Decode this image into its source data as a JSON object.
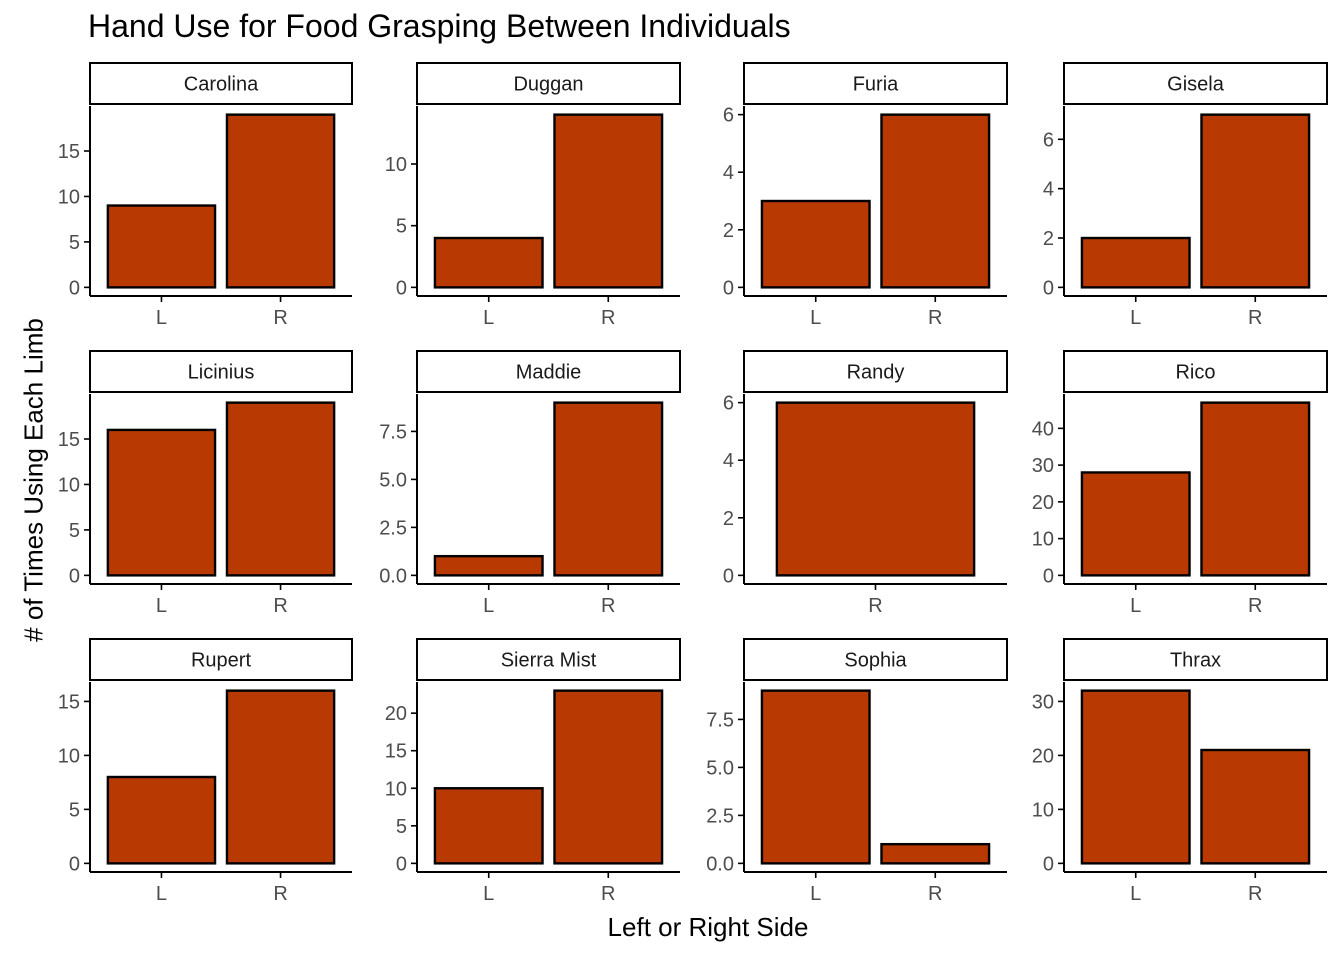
{
  "chart_data": {
    "type": "bar",
    "title": "Hand Use for Food Grasping Between Individuals",
    "xlabel": "Left or Right Side",
    "ylabel": "# of Times Using Each Limb",
    "colors": {
      "bar_fill": "#b83a02",
      "bar_stroke": "#000000",
      "axis": "#000000",
      "tick_label": "#4d4d4d"
    },
    "grid": false,
    "facets": [
      {
        "name": "Carolina",
        "categories": [
          "L",
          "R"
        ],
        "values": [
          9,
          19
        ],
        "ylim": [
          0,
          19.95
        ],
        "yticks": [
          0,
          5,
          10,
          15
        ],
        "ytick_labels": [
          "0",
          "5",
          "10",
          "15"
        ]
      },
      {
        "name": "Duggan",
        "categories": [
          "L",
          "R"
        ],
        "values": [
          4,
          14
        ],
        "ylim": [
          0,
          14.7
        ],
        "yticks": [
          0,
          5,
          10
        ],
        "ytick_labels": [
          "0",
          "5",
          "10"
        ]
      },
      {
        "name": "Furia",
        "categories": [
          "L",
          "R"
        ],
        "values": [
          3,
          6
        ],
        "ylim": [
          0,
          6.3
        ],
        "yticks": [
          0,
          2,
          4,
          6
        ],
        "ytick_labels": [
          "0",
          "2",
          "4",
          "6"
        ]
      },
      {
        "name": "Gisela",
        "categories": [
          "L",
          "R"
        ],
        "values": [
          2,
          7
        ],
        "ylim": [
          0,
          7.35
        ],
        "yticks": [
          0,
          2,
          4,
          6
        ],
        "ytick_labels": [
          "0",
          "2",
          "4",
          "6"
        ]
      },
      {
        "name": "Licinius",
        "categories": [
          "L",
          "R"
        ],
        "values": [
          16,
          19
        ],
        "ylim": [
          0,
          19.95
        ],
        "yticks": [
          0,
          5,
          10,
          15
        ],
        "ytick_labels": [
          "0",
          "5",
          "10",
          "15"
        ]
      },
      {
        "name": "Maddie",
        "categories": [
          "L",
          "R"
        ],
        "values": [
          1,
          9
        ],
        "ylim": [
          0,
          9.45
        ],
        "yticks": [
          0,
          2.5,
          5,
          7.5
        ],
        "ytick_labels": [
          "0.0",
          "2.5",
          "5.0",
          "7.5"
        ]
      },
      {
        "name": "Randy",
        "categories": [
          "R"
        ],
        "values": [
          6
        ],
        "ylim": [
          0,
          6.3
        ],
        "yticks": [
          0,
          2,
          4,
          6
        ],
        "ytick_labels": [
          "0",
          "2",
          "4",
          "6"
        ]
      },
      {
        "name": "Rico",
        "categories": [
          "L",
          "R"
        ],
        "values": [
          28,
          47
        ],
        "ylim": [
          0,
          49.35
        ],
        "yticks": [
          0,
          10,
          20,
          30,
          40
        ],
        "ytick_labels": [
          "0",
          "10",
          "20",
          "30",
          "40"
        ]
      },
      {
        "name": "Rupert",
        "categories": [
          "L",
          "R"
        ],
        "values": [
          8,
          16
        ],
        "ylim": [
          0,
          16.8
        ],
        "yticks": [
          0,
          5,
          10,
          15
        ],
        "ytick_labels": [
          "0",
          "5",
          "10",
          "15"
        ]
      },
      {
        "name": "Sierra Mist",
        "categories": [
          "L",
          "R"
        ],
        "values": [
          10,
          23
        ],
        "ylim": [
          0,
          24.15
        ],
        "yticks": [
          0,
          5,
          10,
          15,
          20
        ],
        "ytick_labels": [
          "0",
          "5",
          "10",
          "15",
          "20"
        ]
      },
      {
        "name": "Sophia",
        "categories": [
          "L",
          "R"
        ],
        "values": [
          9,
          1
        ],
        "ylim": [
          0,
          9.45
        ],
        "yticks": [
          0,
          2.5,
          5,
          7.5
        ],
        "ytick_labels": [
          "0.0",
          "2.5",
          "5.0",
          "7.5"
        ]
      },
      {
        "name": "Thrax",
        "categories": [
          "L",
          "R"
        ],
        "values": [
          32,
          21
        ],
        "ylim": [
          0,
          33.6
        ],
        "yticks": [
          0,
          10,
          20,
          30
        ],
        "ytick_labels": [
          "0",
          "10",
          "20",
          "30"
        ]
      }
    ]
  }
}
